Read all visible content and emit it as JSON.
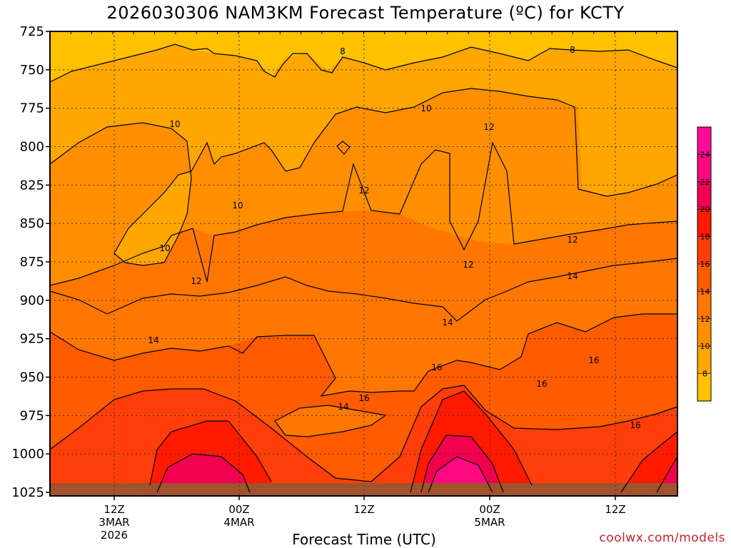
{
  "title": "2026030306 NAM3KM Forecast Temperature (ºC) for KCTY",
  "xlabel": "Forecast Time (UTC)",
  "credit": "coolwx.com/models",
  "chart_data": {
    "type": "heatmap",
    "title": "2026030306 NAM3KM Forecast Temperature (ºC) for KCTY",
    "xlabel": "Forecast Time (UTC)",
    "ylabel": "",
    "y_levels": [
      725,
      750,
      775,
      800,
      825,
      850,
      875,
      900,
      925,
      950,
      975,
      1000,
      1025
    ],
    "x_ticks": [
      {
        "lines": [
          "12Z",
          "3MAR",
          "2026"
        ]
      },
      {
        "lines": [
          "00Z",
          "4MAR"
        ]
      },
      {
        "lines": [
          "12Z"
        ]
      },
      {
        "lines": [
          "00Z",
          "5MAR"
        ]
      },
      {
        "lines": [
          "12Z"
        ]
      }
    ],
    "colorbar_levels": [
      8,
      10,
      12,
      14,
      16,
      18,
      20,
      22,
      24
    ],
    "colorbar_colors": [
      "#ffc100",
      "#ffa600",
      "#ff8f00",
      "#ff7700",
      "#ff5b00",
      "#ff3e0a",
      "#ff1a00",
      "#f20050",
      "#ff0880",
      "#ff0a96"
    ],
    "contour_labels": [
      {
        "text": "8"
      },
      {
        "text": "8"
      },
      {
        "text": "10"
      },
      {
        "text": "10"
      },
      {
        "text": "10"
      },
      {
        "text": "10"
      },
      {
        "text": "12"
      },
      {
        "text": "12"
      },
      {
        "text": "12"
      },
      {
        "text": "12"
      },
      {
        "text": "12"
      },
      {
        "text": "14"
      },
      {
        "text": "14"
      },
      {
        "text": "14"
      },
      {
        "text": "14"
      },
      {
        "text": "16"
      },
      {
        "text": "16"
      },
      {
        "text": "16"
      },
      {
        "text": "16"
      },
      {
        "text": "16"
      }
    ]
  }
}
